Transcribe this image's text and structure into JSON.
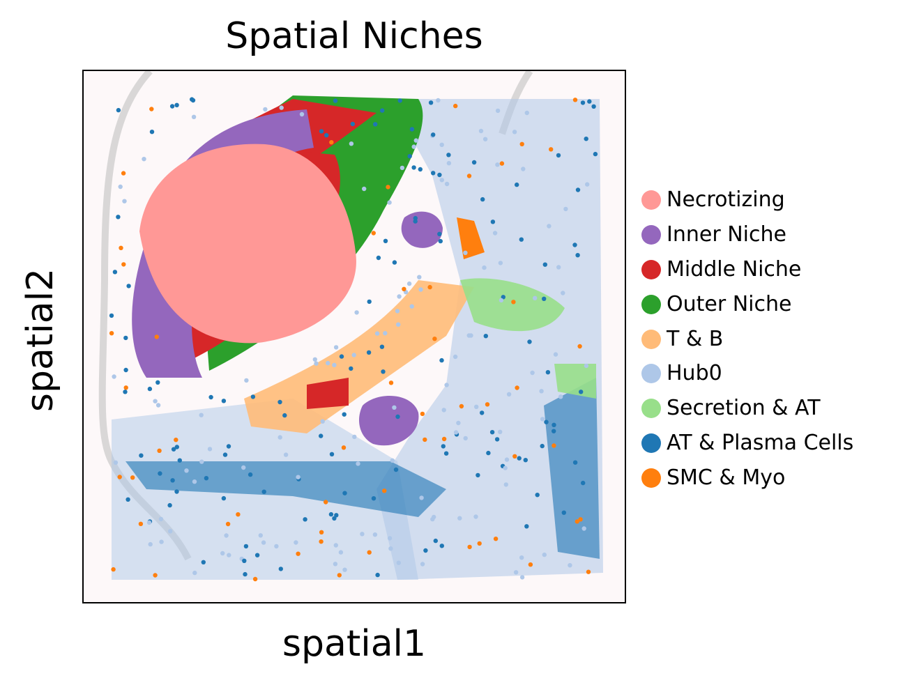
{
  "chart_data": {
    "type": "scatter",
    "title": "Spatial Niches",
    "xlabel": "spatial1",
    "ylabel": "spatial2",
    "legend_position": "right",
    "grid": false,
    "categories": [
      {
        "name": "Necrotizing",
        "color": "#ff9896"
      },
      {
        "name": "Inner Niche",
        "color": "#9467bd"
      },
      {
        "name": "Middle Niche",
        "color": "#d62728"
      },
      {
        "name": "Outer Niche",
        "color": "#2ca02c"
      },
      {
        "name": "T & B",
        "color": "#ffbb78"
      },
      {
        "name": "Hub0",
        "color": "#aec7e8"
      },
      {
        "name": "Secretion & AT",
        "color": "#98df8a"
      },
      {
        "name": "AT & Plasma Cells",
        "color": "#1f77b4"
      },
      {
        "name": "SMC & Myo",
        "color": "#ff7f0e"
      }
    ]
  }
}
